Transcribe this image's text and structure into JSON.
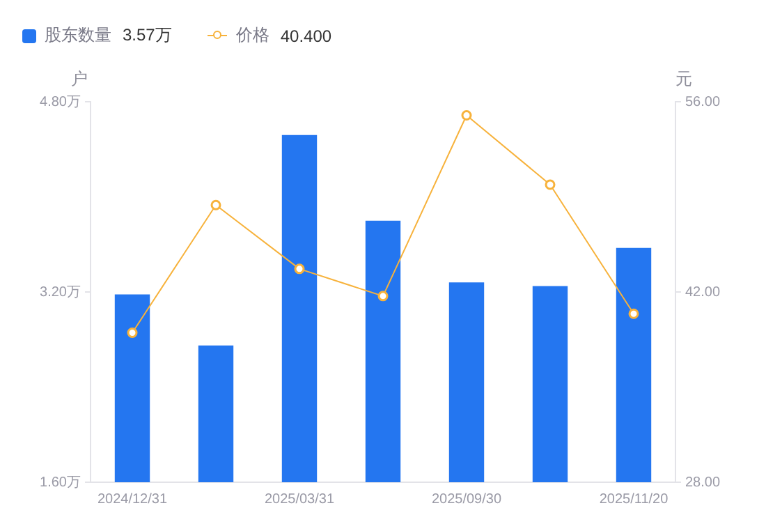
{
  "chart_data": {
    "type": "bar",
    "categories": [
      "2024/12/31",
      null,
      "2025/03/31",
      null,
      "2025/09/30",
      null,
      "2025/11/20"
    ],
    "series": [
      {
        "name": "股东数量",
        "color": "#2476f0",
        "values": [
          3.18,
          2.75,
          4.52,
          3.8,
          3.28,
          3.25,
          3.57
        ]
      },
      {
        "name": "价格",
        "type": "line",
        "axis": "y2",
        "color": "#f7b23b",
        "values": [
          39.0,
          48.4,
          43.7,
          41.7,
          55.0,
          49.9,
          40.4
        ]
      }
    ],
    "ylabel": "户",
    "y2label": "元",
    "ylim": [
      1.6,
      4.8
    ],
    "yticks": [
      {
        "value": 1.6,
        "label": "1.60万"
      },
      {
        "value": 3.2,
        "label": "3.20万"
      },
      {
        "value": 4.8,
        "label": "4.80万"
      }
    ],
    "y2lim": [
      28,
      56
    ],
    "y2ticks": [
      {
        "value": 28,
        "label": "28.00"
      },
      {
        "value": 42,
        "label": "42.00"
      },
      {
        "value": 56,
        "label": "56.00"
      }
    ],
    "annotations": [
      "3.57万",
      "40.400"
    ],
    "legend": "top left",
    "marker": "circle",
    "grid": false
  }
}
